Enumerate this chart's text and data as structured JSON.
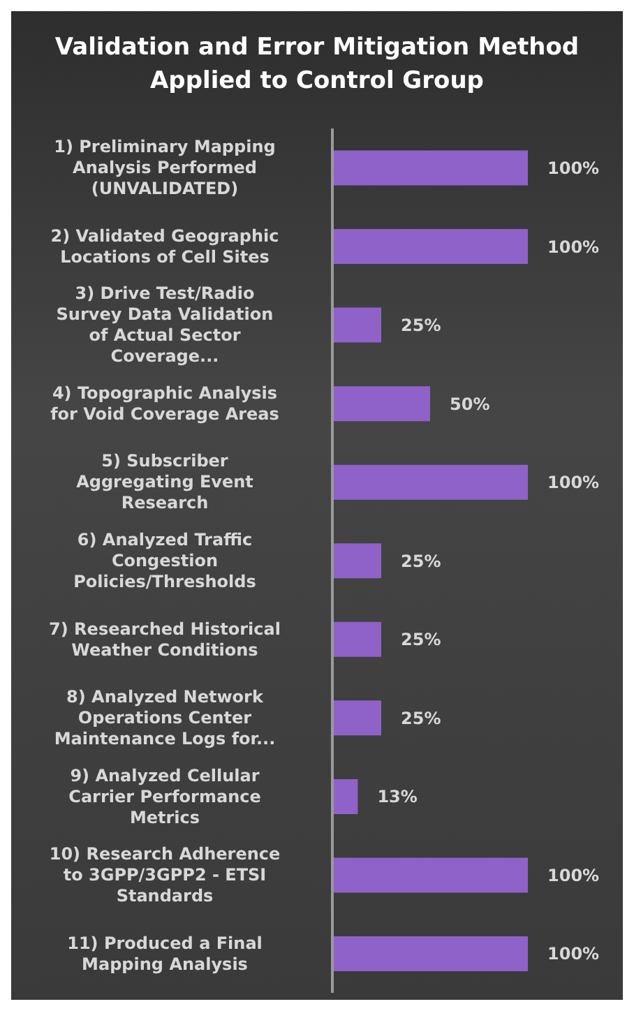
{
  "chart_data": {
    "type": "bar",
    "orientation": "horizontal",
    "title": "Validation and Error Mitigation Method Applied to Control Group",
    "categories": [
      "1) Preliminary Mapping Analysis Performed (UNVALIDATED)",
      "2) Validated Geographic Locations of Cell Sites",
      "3) Drive Test/Radio Survey Data Validation of Actual Sector Coverage...",
      "4) Topographic Analysis for Void Coverage Areas",
      "5) Subscriber Aggregating Event Research",
      "6) Analyzed Traffic Congestion Policies/Thresholds",
      "7) Researched Historical Weather Conditions",
      "8) Analyzed Network Operations Center Maintenance Logs for...",
      "9) Analyzed Cellular Carrier Performance Metrics",
      "10) Research Adherence to 3GPP/3GPP2 - ETSI Standards",
      "11) Produced a Final Mapping Analysis"
    ],
    "values": [
      100,
      100,
      25,
      50,
      100,
      25,
      25,
      25,
      13,
      100,
      100
    ],
    "value_labels": [
      "100%",
      "100%",
      "25%",
      "50%",
      "100%",
      "25%",
      "25%",
      "25%",
      "13%",
      "100%",
      "100%"
    ],
    "color": "#8e62c8",
    "tick_labels": "y"
  }
}
